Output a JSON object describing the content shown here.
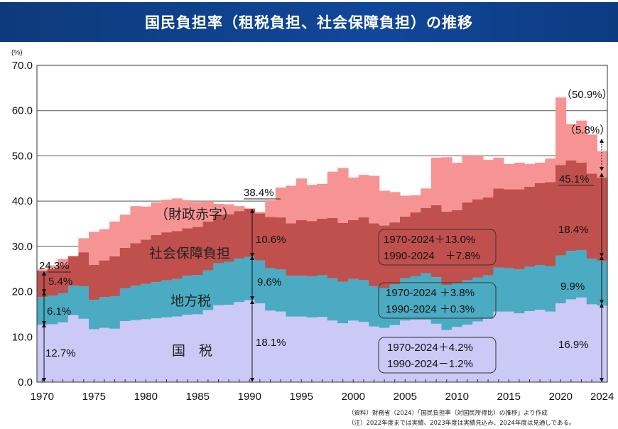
{
  "header": {
    "title": "国民負担率（租税負担、社会保障負担）の推移"
  },
  "chart_data": {
    "type": "bar",
    "stacked": true,
    "title": "国民負担率（租税負担、社会保障負担）の推移",
    "ylabel": "(%)",
    "ylim": [
      0,
      70
    ],
    "yticks": [
      "0.0",
      "10.0",
      "20.0",
      "30.0",
      "40.0",
      "50.0",
      "60.0",
      "70.0"
    ],
    "xticks": [
      "1970",
      "1975",
      "1980",
      "1985",
      "1990",
      "1995",
      "2000",
      "2005",
      "2010",
      "2015",
      "2020",
      "2024"
    ],
    "years": [
      1970,
      1971,
      1972,
      1973,
      1974,
      1975,
      1976,
      1977,
      1978,
      1979,
      1980,
      1981,
      1982,
      1983,
      1984,
      1985,
      1986,
      1987,
      1988,
      1989,
      1990,
      1991,
      1992,
      1993,
      1994,
      1995,
      1996,
      1997,
      1998,
      1999,
      2000,
      2001,
      2002,
      2003,
      2004,
      2005,
      2006,
      2007,
      2008,
      2009,
      2010,
      2011,
      2012,
      2013,
      2014,
      2015,
      2016,
      2017,
      2018,
      2019,
      2020,
      2021,
      2022,
      2023,
      2024
    ],
    "series": [
      {
        "name": "国税",
        "color": "#cbc9f6",
        "values": [
          12.7,
          12.8,
          13.2,
          14.8,
          14.0,
          11.7,
          12.0,
          11.8,
          13.5,
          13.7,
          13.9,
          14.1,
          14.3,
          14.5,
          14.9,
          15.0,
          15.9,
          17.0,
          17.1,
          17.7,
          18.1,
          17.4,
          15.8,
          15.6,
          14.5,
          14.5,
          14.3,
          14.4,
          13.6,
          13.0,
          13.6,
          13.3,
          12.3,
          12.0,
          12.6,
          13.6,
          13.8,
          13.8,
          12.9,
          11.5,
          12.2,
          12.7,
          13.4,
          14.0,
          15.6,
          15.6,
          15.2,
          15.7,
          16.0,
          15.6,
          17.4,
          18.3,
          18.7,
          17.2,
          16.9
        ]
      },
      {
        "name": "地方税",
        "color": "#4aabc2",
        "values": [
          6.1,
          6.3,
          6.4,
          6.5,
          7.2,
          6.5,
          6.8,
          7.2,
          7.2,
          7.6,
          7.8,
          8.0,
          8.2,
          8.3,
          8.6,
          8.7,
          8.8,
          9.3,
          9.5,
          9.6,
          9.6,
          9.5,
          9.4,
          9.3,
          9.0,
          9.0,
          9.1,
          9.2,
          9.4,
          9.2,
          9.2,
          9.3,
          8.9,
          8.8,
          9.0,
          9.4,
          9.6,
          10.3,
          10.3,
          10.0,
          9.6,
          9.8,
          9.7,
          9.6,
          9.7,
          9.6,
          9.7,
          9.8,
          9.9,
          10.0,
          10.6,
          10.7,
          10.5,
          10.1,
          9.9
        ]
      },
      {
        "name": "社会保障負担",
        "color": "#c0504d",
        "values": [
          5.4,
          5.9,
          6.1,
          6.5,
          7.5,
          7.7,
          8.1,
          8.8,
          9.0,
          9.4,
          9.8,
          10.4,
          10.6,
          10.6,
          10.5,
          10.6,
          10.8,
          10.7,
          10.5,
          10.5,
          10.6,
          10.4,
          11.3,
          11.5,
          11.6,
          12.3,
          12.2,
          12.5,
          13.3,
          13.0,
          13.0,
          13.8,
          13.9,
          13.8,
          13.7,
          13.6,
          14.1,
          14.4,
          15.9,
          16.2,
          16.2,
          17.2,
          17.3,
          17.2,
          17.5,
          17.4,
          17.7,
          17.7,
          18.1,
          18.6,
          20.0,
          20.0,
          19.3,
          18.8,
          18.4
        ]
      },
      {
        "name": "財政赤字",
        "color": "#f69494",
        "values": [
          0.7,
          0.8,
          1.5,
          0.1,
          3.1,
          7.3,
          6.9,
          7.7,
          7.3,
          8.2,
          7.3,
          7.2,
          7.2,
          7.2,
          6.2,
          5.5,
          4.5,
          2.4,
          2.2,
          1.1,
          0.1,
          0.3,
          3.7,
          6.6,
          8.3,
          9.2,
          8.0,
          7.7,
          10.2,
          12.1,
          9.4,
          9.4,
          10.5,
          7.7,
          6.7,
          4.6,
          3.8,
          4.3,
          10.5,
          12.0,
          10.5,
          10.5,
          9.6,
          8.3,
          6.8,
          5.6,
          5.9,
          5.0,
          4.5,
          5.2,
          14.9,
          8.0,
          9.3,
          8.6,
          5.8
        ]
      }
    ],
    "category_labels": {
      "national_tax": "国　税",
      "local_tax": "地方税",
      "social_security": "社会保障負担",
      "deficit": "（財政赤字）"
    },
    "annotations": {
      "y1970_total": "24.3%",
      "y1970_ss": "5.4%",
      "y1970_local": "6.1%",
      "y1970_nat": "12.7%",
      "y1990_total": "38.4%",
      "y1990_ss": "10.6%",
      "y1990_local": "9.6%",
      "y1990_nat": "18.1%",
      "y2020_total": "（50.9%）",
      "y2024_deficit": "（5.8%）",
      "y2024_total": "45.1%",
      "y2024_ss": "18.4%",
      "y2024_local": "9.9%",
      "y2024_nat": "16.9%",
      "ss_change": [
        "1970-2024＋13.0%",
        "1990-2024　＋7.8%"
      ],
      "local_change": [
        "1970-2024 ＋3.8%",
        "1990-2024 ＋0.3%"
      ],
      "nat_change": [
        "1970-2024＋4.2%",
        "1990-2024－1.2%"
      ]
    },
    "notes": [
      "（資料）財務省（2024）「国民負担率（対国民所得比）の推移」より作成",
      "（注）2022年度までは実績、2023年度は実績見込み、2024年度は見通しである。"
    ]
  }
}
